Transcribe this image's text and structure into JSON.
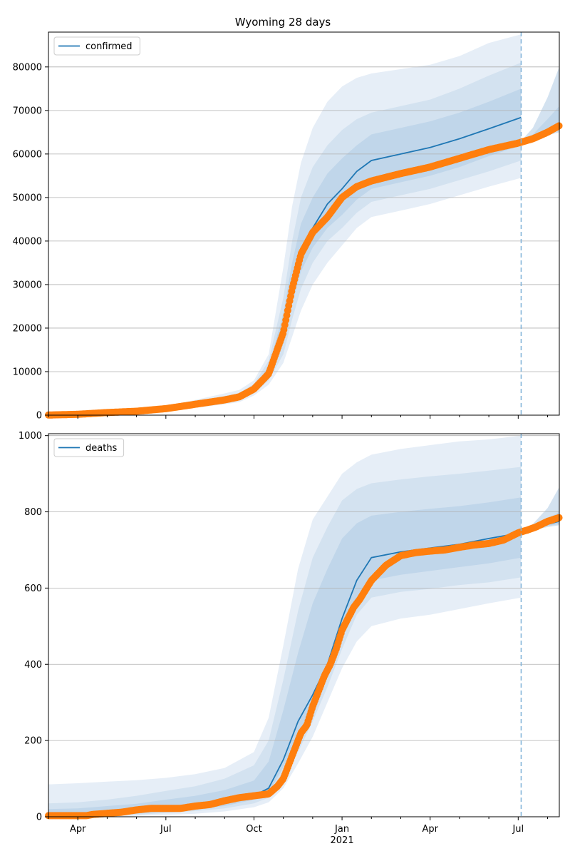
{
  "figure": {
    "title": "Wyoming 28 days"
  },
  "colors": {
    "model": "#1f77b4",
    "observed": "#ff7f0e",
    "band_outer": "#e6eef7",
    "band_mid": "#d3e2f0",
    "band_inner": "#c0d6ea",
    "grid": "#b0b0b0",
    "forecast_line": "#7fb2d8"
  },
  "x_axis": {
    "ticks": [
      {
        "label": "Apr",
        "month": 0
      },
      {
        "label": "Jul",
        "month": 3
      },
      {
        "label": "Oct",
        "month": 6
      },
      {
        "label": "Jan",
        "month": 9
      },
      {
        "label": "Apr",
        "month": 12
      },
      {
        "label": "Jul",
        "month": 15
      }
    ],
    "year_label": "2021",
    "xlim_months": [
      -1.0,
      16.4
    ],
    "forecast_start_month": 15.1
  },
  "chart_data": [
    {
      "type": "line",
      "name": "confirmed",
      "legend": "top-left",
      "grid": "horizontal",
      "ylim": [
        0,
        88000
      ],
      "yticks": [
        0,
        10000,
        20000,
        30000,
        40000,
        50000,
        60000,
        70000,
        80000
      ],
      "x_months": [
        -1,
        0,
        1,
        2,
        3,
        4,
        5,
        5.5,
        6,
        6.5,
        7,
        7.3,
        7.6,
        8,
        8.5,
        9,
        9.5,
        10,
        11,
        12,
        13,
        14,
        15.1
      ],
      "model": [
        30,
        200,
        500,
        900,
        1500,
        2500,
        3600,
        4200,
        6000,
        10000,
        20000,
        30000,
        38000,
        43000,
        48500,
        52000,
        56000,
        58500,
        60000,
        61500,
        63500,
        65800,
        68400
      ],
      "band_outer_upper": [
        50,
        300,
        800,
        1300,
        2100,
        3500,
        5000,
        5800,
        8000,
        14000,
        34000,
        48000,
        58000,
        66000,
        72000,
        75500,
        77500,
        78500,
        79500,
        80500,
        82500,
        85500,
        87500
      ],
      "band_outer_lower": [
        10,
        100,
        300,
        600,
        1000,
        1700,
        2500,
        3000,
        4500,
        7000,
        12000,
        18000,
        24000,
        30000,
        35000,
        39000,
        43000,
        45500,
        47000,
        48500,
        50500,
        52500,
        54500
      ],
      "band_mid_upper": [
        40,
        250,
        650,
        1100,
        1800,
        3000,
        4400,
        5100,
        7200,
        12500,
        27000,
        40000,
        50000,
        57000,
        62000,
        65500,
        68000,
        69500,
        71000,
        72500,
        75000,
        78000,
        81000
      ],
      "band_mid_lower": [
        15,
        130,
        380,
        700,
        1200,
        2000,
        2900,
        3500,
        5000,
        8000,
        14000,
        22000,
        29000,
        35000,
        40000,
        43000,
        46500,
        49000,
        50500,
        52000,
        54000,
        56000,
        58500
      ],
      "band_inner_upper": [
        35,
        225,
        570,
        1000,
        1650,
        2750,
        4000,
        4650,
        6600,
        11200,
        23500,
        35000,
        44000,
        50000,
        55500,
        59000,
        62000,
        64500,
        66000,
        67500,
        69500,
        72000,
        75000
      ],
      "band_inner_lower": [
        22,
        170,
        430,
        800,
        1350,
        2250,
        3200,
        3750,
        5400,
        8800,
        16500,
        25500,
        33000,
        38500,
        43000,
        46000,
        49500,
        52000,
        53500,
        55000,
        57000,
        59500,
        62000
      ],
      "observed_x": [
        -1,
        0,
        1,
        2,
        3,
        4,
        5,
        5.5,
        6,
        6.5,
        7,
        7.3,
        7.6,
        8,
        8.5,
        9,
        9.5,
        10,
        11,
        12,
        13,
        14,
        15,
        15.5,
        16,
        16.4
      ],
      "observed": [
        30,
        200,
        600,
        900,
        1500,
        2500,
        3500,
        4200,
        6000,
        9500,
        19000,
        29000,
        37000,
        42000,
        45500,
        50000,
        52500,
        53800,
        55500,
        57000,
        59000,
        61000,
        62500,
        63500,
        65000,
        66500
      ],
      "forecast_x": [
        15.1,
        15.5,
        16,
        16.4
      ],
      "forecast_outer_upper": [
        63000,
        66000,
        73000,
        80000
      ],
      "forecast_outer_lower": [
        62500,
        63200,
        64300,
        65000
      ],
      "forecast_inner_upper": [
        63000,
        64500,
        68000,
        71000
      ],
      "forecast_inner_lower": [
        62600,
        63500,
        64700,
        65500
      ],
      "forecast_model": [
        62900,
        63800,
        64900,
        65700
      ]
    },
    {
      "type": "line",
      "name": "deaths",
      "legend": "top-left",
      "grid": "horizontal",
      "ylim": [
        0,
        1005
      ],
      "yticks": [
        0,
        200,
        400,
        600,
        800,
        1000
      ],
      "x_months": [
        -1,
        0,
        1,
        2,
        3,
        4,
        5,
        6,
        6.5,
        7,
        7.5,
        8,
        8.5,
        9,
        9.5,
        10,
        11,
        12,
        13,
        14,
        15.1
      ],
      "model": [
        3,
        3,
        5,
        12,
        20,
        25,
        35,
        55,
        75,
        150,
        250,
        320,
        400,
        520,
        620,
        680,
        695,
        705,
        715,
        730,
        745
      ],
      "band_outer_upper": [
        85,
        88,
        92,
        96,
        102,
        112,
        128,
        170,
        260,
        450,
        650,
        780,
        840,
        900,
        930,
        950,
        965,
        975,
        985,
        990,
        1000
      ],
      "band_outer_lower": [
        0,
        0,
        0,
        2,
        5,
        8,
        14,
        25,
        38,
        75,
        140,
        210,
        300,
        390,
        460,
        500,
        520,
        530,
        545,
        560,
        575
      ],
      "band_mid_upper": [
        35,
        38,
        45,
        55,
        68,
        80,
        100,
        135,
        200,
        360,
        540,
        680,
        760,
        830,
        860,
        875,
        885,
        893,
        900,
        908,
        918
      ],
      "band_mid_lower": [
        0,
        0,
        2,
        5,
        10,
        15,
        22,
        35,
        50,
        100,
        170,
        250,
        340,
        440,
        530,
        575,
        590,
        598,
        608,
        615,
        628
      ],
      "band_inner_upper": [
        20,
        22,
        28,
        34,
        45,
        55,
        70,
        95,
        145,
        280,
        430,
        560,
        650,
        730,
        770,
        790,
        800,
        808,
        815,
        825,
        838
      ],
      "band_inner_lower": [
        0,
        0,
        3,
        8,
        14,
        20,
        28,
        45,
        62,
        130,
        210,
        290,
        370,
        470,
        570,
        620,
        635,
        645,
        655,
        665,
        680
      ],
      "observed_x": [
        -1,
        0,
        0.3,
        0.5,
        1,
        1.5,
        2,
        2.5,
        3,
        3.5,
        4,
        4.5,
        5,
        5.5,
        6,
        6.5,
        6.8,
        7,
        7.2,
        7.4,
        7.6,
        7.8,
        8,
        8.2,
        8.4,
        8.6,
        8.8,
        9,
        9.2,
        9.4,
        9.6,
        9.8,
        10,
        10.5,
        11,
        11.5,
        12,
        12.5,
        13,
        13.5,
        14,
        14.5,
        15,
        15.3,
        15.6,
        16,
        16.4
      ],
      "observed": [
        3,
        3,
        3,
        6,
        9,
        12,
        18,
        22,
        22,
        22,
        28,
        32,
        42,
        50,
        55,
        60,
        80,
        100,
        140,
        180,
        220,
        240,
        290,
        330,
        370,
        400,
        440,
        490,
        520,
        550,
        570,
        595,
        620,
        660,
        685,
        693,
        697,
        700,
        707,
        713,
        717,
        726,
        745,
        752,
        760,
        775,
        785
      ],
      "forecast_x": [
        15.1,
        15.5,
        16,
        16.4
      ],
      "forecast_outer_upper": [
        750,
        768,
        810,
        865
      ],
      "forecast_outer_lower": [
        745,
        752,
        760,
        765
      ],
      "forecast_inner_upper": [
        748,
        760,
        782,
        800
      ],
      "forecast_inner_lower": [
        746,
        754,
        763,
        768
      ],
      "forecast_model": [
        748,
        757,
        767,
        775
      ]
    }
  ]
}
